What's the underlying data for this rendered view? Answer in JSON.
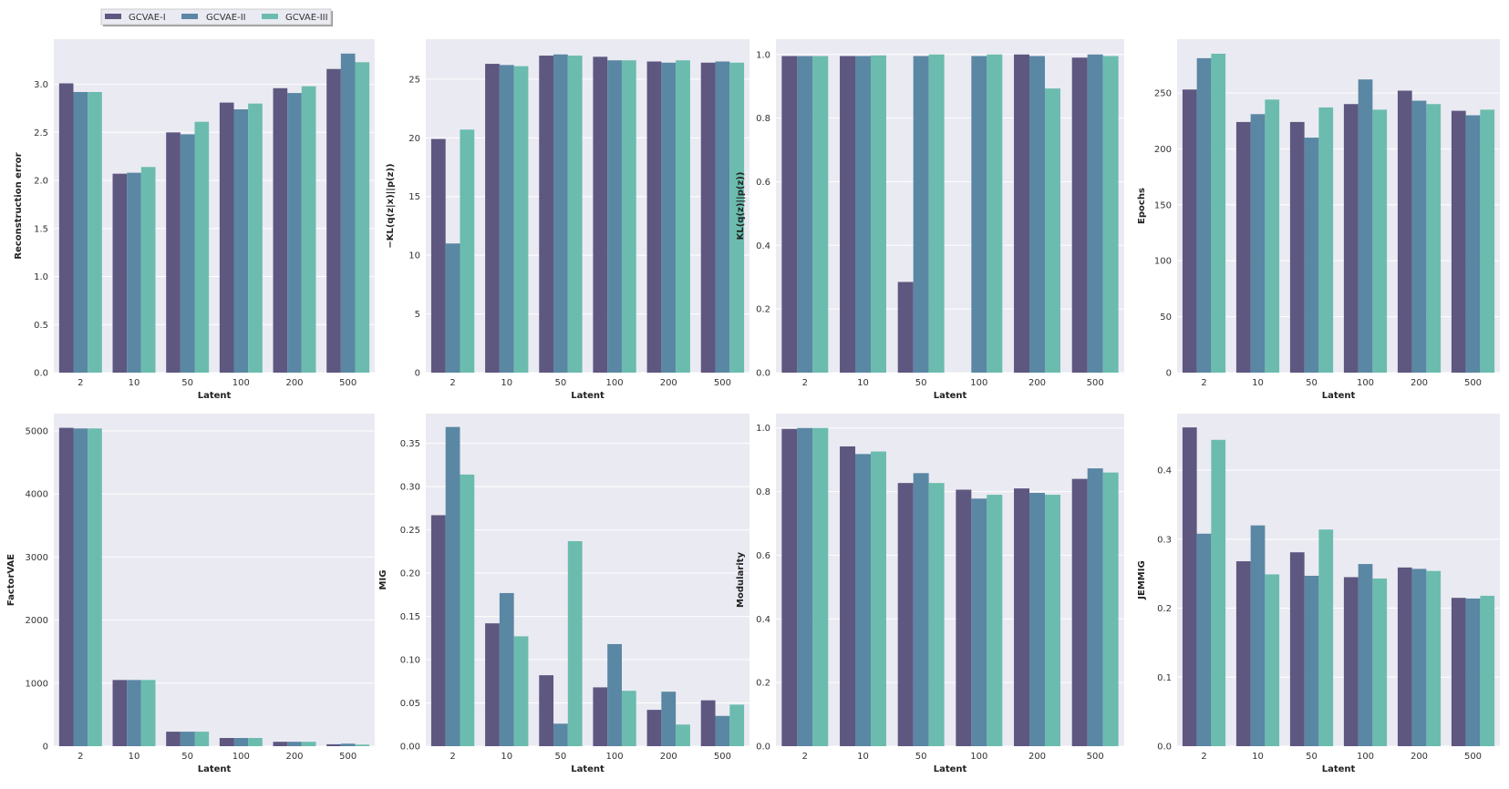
{
  "legend": [
    "GCVAE-I",
    "GCVAE-II",
    "GCVAE-III"
  ],
  "colors": {
    "GCVAE-I": "#5e5780",
    "GCVAE-II": "#5a87a3",
    "GCVAE-III": "#6bbcae",
    "background": "#eaeaf2",
    "grid": "#ffffff"
  },
  "chart_data": [
    {
      "type": "bar",
      "xlabel": "Latent",
      "ylabel": "Reconstruction error",
      "categories": [
        "2",
        "10",
        "50",
        "100",
        "200",
        "500"
      ],
      "ylim": [
        0,
        3.47
      ],
      "yticks": [
        0.0,
        0.5,
        1.0,
        1.5,
        2.0,
        2.5,
        3.0
      ],
      "tick_decimals": 1,
      "grid": true,
      "series": [
        {
          "name": "GCVAE-I",
          "values": [
            3.01,
            2.07,
            2.5,
            2.81,
            2.96,
            3.16
          ]
        },
        {
          "name": "GCVAE-II",
          "values": [
            2.92,
            2.08,
            2.48,
            2.74,
            2.91,
            3.32
          ]
        },
        {
          "name": "GCVAE-III",
          "values": [
            2.92,
            2.14,
            2.61,
            2.8,
            2.98,
            3.23
          ]
        }
      ]
    },
    {
      "type": "bar",
      "xlabel": "Latent",
      "ylabel": "−KL(q(z|x)||p(z))",
      "categories": [
        "2",
        "10",
        "50",
        "100",
        "200",
        "500"
      ],
      "ylim": [
        0,
        28.4
      ],
      "yticks": [
        0,
        5,
        10,
        15,
        20,
        25
      ],
      "tick_decimals": 0,
      "grid": true,
      "series": [
        {
          "name": "GCVAE-I",
          "values": [
            19.9,
            26.3,
            27.0,
            26.9,
            26.5,
            26.4
          ]
        },
        {
          "name": "GCVAE-II",
          "values": [
            11.0,
            26.2,
            27.1,
            26.6,
            26.4,
            26.5
          ]
        },
        {
          "name": "GCVAE-III",
          "values": [
            20.7,
            26.1,
            27.0,
            26.6,
            26.6,
            26.4
          ]
        }
      ]
    },
    {
      "type": "bar",
      "xlabel": "Latent",
      "ylabel": "KL(q(z)||p(z))",
      "categories": [
        "2",
        "10",
        "50",
        "100",
        "200",
        "500"
      ],
      "ylim": [
        0,
        1.048
      ],
      "yticks": [
        0.0,
        0.2,
        0.4,
        0.6,
        0.8,
        1.0
      ],
      "tick_decimals": 1,
      "grid": true,
      "series": [
        {
          "name": "GCVAE-I",
          "values": [
            0.995,
            0.995,
            0.285,
            0,
            1.0,
            0.99
          ]
        },
        {
          "name": "GCVAE-II",
          "values": [
            0.995,
            0.995,
            0.995,
            0.995,
            0.995,
            1.0
          ]
        },
        {
          "name": "GCVAE-III",
          "values": [
            0.995,
            0.997,
            1.0,
            1.0,
            0.893,
            0.995
          ]
        }
      ]
    },
    {
      "type": "bar",
      "xlabel": "Latent",
      "ylabel": "Epochs",
      "categories": [
        "2",
        "10",
        "50",
        "100",
        "200",
        "500"
      ],
      "ylim": [
        0,
        298
      ],
      "yticks": [
        0,
        50,
        100,
        150,
        200,
        250
      ],
      "tick_decimals": 0,
      "grid": true,
      "series": [
        {
          "name": "GCVAE-I",
          "values": [
            253,
            224,
            224,
            240,
            252,
            234
          ]
        },
        {
          "name": "GCVAE-II",
          "values": [
            281,
            231,
            210,
            262,
            243,
            230
          ]
        },
        {
          "name": "GCVAE-III",
          "values": [
            285,
            244,
            237,
            235,
            240,
            235
          ]
        }
      ]
    },
    {
      "type": "bar",
      "xlabel": "Latent",
      "ylabel": "FactorVAE",
      "categories": [
        "2",
        "10",
        "50",
        "100",
        "200",
        "500"
      ],
      "ylim": [
        0,
        5275
      ],
      "yticks": [
        0,
        1000,
        2000,
        3000,
        4000,
        5000
      ],
      "tick_decimals": 0,
      "grid": true,
      "series": [
        {
          "name": "GCVAE-I",
          "values": [
            5050,
            1050,
            230,
            130,
            70,
            30
          ]
        },
        {
          "name": "GCVAE-II",
          "values": [
            5040,
            1050,
            230,
            130,
            70,
            40
          ]
        },
        {
          "name": "GCVAE-III",
          "values": [
            5040,
            1050,
            230,
            130,
            70,
            25
          ]
        }
      ]
    },
    {
      "type": "bar",
      "xlabel": "Latent",
      "ylabel": "MIG",
      "categories": [
        "2",
        "10",
        "50",
        "100",
        "200",
        "500"
      ],
      "ylim": [
        0,
        0.3844
      ],
      "yticks": [
        0.0,
        0.05,
        0.1,
        0.15,
        0.2,
        0.25,
        0.3,
        0.35
      ],
      "tick_decimals": 2,
      "grid": true,
      "series": [
        {
          "name": "GCVAE-I",
          "values": [
            0.267,
            0.142,
            0.082,
            0.068,
            0.042,
            0.053
          ]
        },
        {
          "name": "GCVAE-II",
          "values": [
            0.369,
            0.177,
            0.026,
            0.118,
            0.063,
            0.035
          ]
        },
        {
          "name": "GCVAE-III",
          "values": [
            0.314,
            0.127,
            0.237,
            0.064,
            0.025,
            0.048
          ]
        }
      ]
    },
    {
      "type": "bar",
      "xlabel": "Latent",
      "ylabel": "Modularity",
      "categories": [
        "2",
        "10",
        "50",
        "100",
        "200",
        "500"
      ],
      "ylim": [
        0,
        1.045
      ],
      "yticks": [
        0.0,
        0.2,
        0.4,
        0.6,
        0.8,
        1.0
      ],
      "tick_decimals": 1,
      "grid": true,
      "series": [
        {
          "name": "GCVAE-I",
          "values": [
            0.997,
            0.942,
            0.827,
            0.806,
            0.81,
            0.84
          ]
        },
        {
          "name": "GCVAE-II",
          "values": [
            1.0,
            0.918,
            0.858,
            0.778,
            0.796,
            0.873
          ]
        },
        {
          "name": "GCVAE-III",
          "values": [
            1.0,
            0.926,
            0.827,
            0.79,
            0.79,
            0.86
          ]
        }
      ]
    },
    {
      "type": "bar",
      "xlabel": "Latent",
      "ylabel": "JEMMIG",
      "categories": [
        "2",
        "10",
        "50",
        "100",
        "200",
        "500"
      ],
      "ylim": [
        0,
        0.482
      ],
      "yticks": [
        0.0,
        0.1,
        0.2,
        0.3,
        0.4
      ],
      "tick_decimals": 1,
      "grid": true,
      "series": [
        {
          "name": "GCVAE-I",
          "values": [
            0.462,
            0.268,
            0.281,
            0.245,
            0.259,
            0.215
          ]
        },
        {
          "name": "GCVAE-II",
          "values": [
            0.308,
            0.32,
            0.247,
            0.264,
            0.257,
            0.214
          ]
        },
        {
          "name": "GCVAE-III",
          "values": [
            0.444,
            0.249,
            0.314,
            0.243,
            0.254,
            0.218
          ]
        }
      ]
    }
  ]
}
